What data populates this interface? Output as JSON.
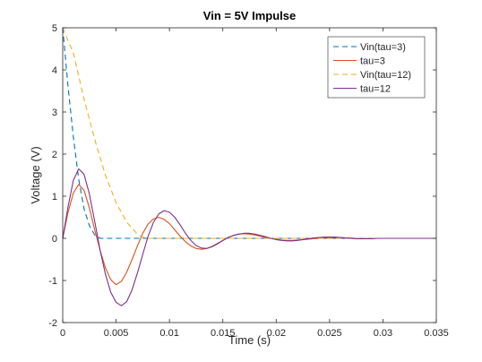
{
  "chart_data": {
    "type": "line",
    "title": "Vin = 5V Impulse",
    "xlabel": "Time (s)",
    "ylabel": "Voltage (V)",
    "xlim": [
      0,
      0.035
    ],
    "ylim": [
      -2,
      5
    ],
    "xticks": [
      0,
      0.005,
      0.01,
      0.015,
      0.02,
      0.025,
      0.03,
      0.035
    ],
    "xtick_labels": [
      "0",
      "0.005",
      "0.01",
      "0.015",
      "0.02",
      "0.025",
      "0.03",
      "0.035"
    ],
    "yticks": [
      -2,
      -1,
      0,
      1,
      2,
      3,
      4,
      5
    ],
    "ytick_labels": [
      "-2",
      "-1",
      "0",
      "1",
      "2",
      "3",
      "4",
      "5"
    ],
    "grid": false,
    "legend_position": "top-right",
    "series": [
      {
        "name": "Vin(tau=3)",
        "color": "#0072BD",
        "dash": "dashed",
        "x": [
          0,
          0.0005,
          0.001,
          0.0015,
          0.002,
          0.0025,
          0.003,
          0.0035,
          0.035
        ],
        "y": [
          5,
          3.6,
          2.4,
          1.4,
          0.7,
          0.3,
          0.08,
          0.0,
          0.0
        ]
      },
      {
        "name": "tau=3",
        "color": "#D95319",
        "dash": "solid",
        "x": [
          0,
          0.0005,
          0.001,
          0.0015,
          0.002,
          0.0025,
          0.003,
          0.0035,
          0.004,
          0.0045,
          0.005,
          0.0055,
          0.006,
          0.0065,
          0.007,
          0.0075,
          0.008,
          0.0085,
          0.009,
          0.0095,
          0.01,
          0.0105,
          0.011,
          0.0115,
          0.012,
          0.0125,
          0.013,
          0.0135,
          0.014,
          0.0145,
          0.015,
          0.0155,
          0.016,
          0.0165,
          0.017,
          0.0175,
          0.018,
          0.0185,
          0.019,
          0.0195,
          0.02,
          0.0205,
          0.021,
          0.0215,
          0.022,
          0.0225,
          0.023,
          0.0235,
          0.024,
          0.0245,
          0.025,
          0.0255,
          0.026,
          0.0265,
          0.027,
          0.0275,
          0.028,
          0.0285,
          0.029,
          0.0295,
          0.03,
          0.0305,
          0.031,
          0.0315,
          0.032,
          0.0325,
          0.033,
          0.0335,
          0.034,
          0.0345,
          0.035
        ],
        "y": [
          0,
          0.62,
          1.08,
          1.28,
          1.14,
          0.72,
          0.2,
          -0.28,
          -0.7,
          -0.98,
          -1.1,
          -1.02,
          -0.8,
          -0.5,
          -0.18,
          0.12,
          0.34,
          0.46,
          0.5,
          0.45,
          0.35,
          0.2,
          0.05,
          -0.08,
          -0.18,
          -0.24,
          -0.26,
          -0.24,
          -0.19,
          -0.12,
          -0.05,
          0.02,
          0.07,
          0.1,
          0.11,
          0.1,
          0.08,
          0.05,
          0.02,
          0.0,
          -0.02,
          -0.04,
          -0.05,
          -0.05,
          -0.04,
          -0.03,
          -0.02,
          -0.01,
          0.0,
          0.01,
          0.01,
          0.02,
          0.02,
          0.01,
          0.01,
          0.0,
          0.0,
          0.0,
          0.0,
          0.0,
          0.0,
          0.0,
          0.0,
          0.0,
          0.0,
          0.0,
          0.0,
          0.0,
          0.0,
          0.0,
          0.0
        ]
      },
      {
        "name": "Vin(tau=12)",
        "color": "#EDB120",
        "dash": "dashed",
        "x": [
          0,
          0.001,
          0.002,
          0.003,
          0.004,
          0.005,
          0.006,
          0.007,
          0.0075,
          0.008,
          0.035
        ],
        "y": [
          5,
          4.4,
          3.3,
          2.35,
          1.5,
          0.85,
          0.38,
          0.1,
          0.03,
          0.0,
          0.0
        ]
      },
      {
        "name": "tau=12",
        "color": "#7E2F8E",
        "dash": "solid",
        "x": [
          0,
          0.0005,
          0.001,
          0.0015,
          0.002,
          0.0025,
          0.003,
          0.0035,
          0.004,
          0.0045,
          0.005,
          0.0055,
          0.006,
          0.0065,
          0.007,
          0.0075,
          0.008,
          0.0085,
          0.009,
          0.0095,
          0.01,
          0.0105,
          0.011,
          0.0115,
          0.012,
          0.0125,
          0.013,
          0.0135,
          0.014,
          0.0145,
          0.015,
          0.0155,
          0.016,
          0.0165,
          0.017,
          0.0175,
          0.018,
          0.0185,
          0.019,
          0.0195,
          0.02,
          0.0205,
          0.021,
          0.0215,
          0.022,
          0.0225,
          0.023,
          0.0235,
          0.024,
          0.0245,
          0.025,
          0.0255,
          0.026,
          0.0265,
          0.027,
          0.0275,
          0.028,
          0.0285,
          0.029,
          0.0295,
          0.03,
          0.0305,
          0.031,
          0.0315,
          0.032,
          0.0325,
          0.033,
          0.0335,
          0.034,
          0.0345,
          0.035
        ],
        "y": [
          0,
          0.75,
          1.38,
          1.65,
          1.52,
          1.05,
          0.4,
          -0.28,
          -0.85,
          -1.28,
          -1.52,
          -1.6,
          -1.5,
          -1.22,
          -0.82,
          -0.38,
          0.05,
          0.38,
          0.58,
          0.66,
          0.62,
          0.5,
          0.32,
          0.12,
          -0.05,
          -0.17,
          -0.23,
          -0.24,
          -0.2,
          -0.13,
          -0.05,
          0.02,
          0.07,
          0.1,
          0.12,
          0.12,
          0.1,
          0.07,
          0.04,
          0.0,
          -0.03,
          -0.05,
          -0.06,
          -0.06,
          -0.05,
          -0.03,
          -0.01,
          0.01,
          0.02,
          0.03,
          0.03,
          0.03,
          0.02,
          0.01,
          0.0,
          -0.01,
          -0.01,
          -0.01,
          -0.01,
          0.0,
          0.0,
          0.0,
          0.0,
          0.0,
          0.0,
          0.0,
          0.0,
          0.0,
          0.0,
          0.0,
          0.0
        ]
      }
    ]
  }
}
